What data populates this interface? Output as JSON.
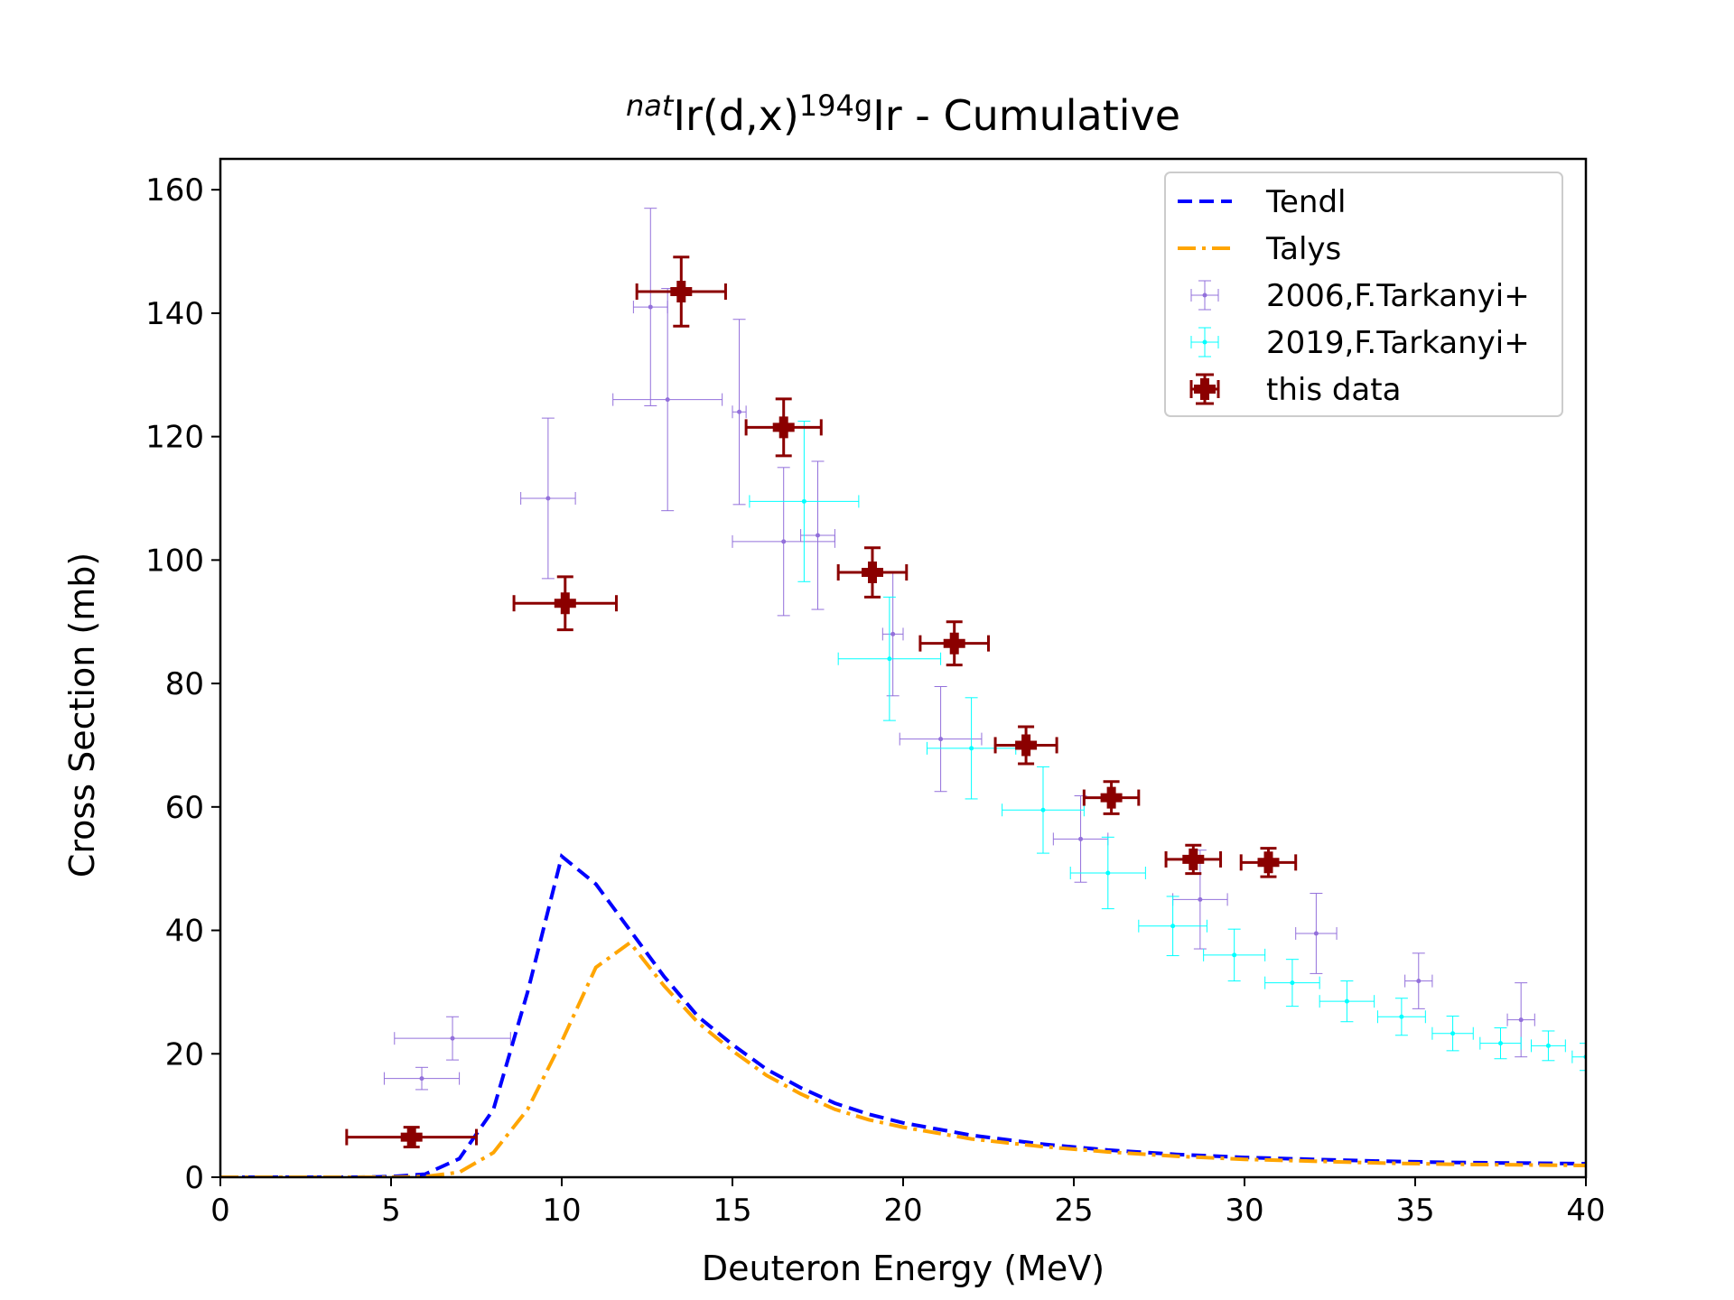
{
  "chart_data": {
    "type": "scatter",
    "title": {
      "prefix_sup": "nat",
      "main1": "Ir(d,x)",
      "mass_sup": "194g",
      "main2": "Ir - Cumulative"
    },
    "xlabel": "Deuteron Energy (MeV)",
    "ylabel": "Cross Section (mb)",
    "xlim": [
      0,
      40
    ],
    "ylim": [
      0,
      165
    ],
    "xticks": [
      0,
      5,
      10,
      15,
      20,
      25,
      30,
      35,
      40
    ],
    "yticks": [
      0,
      20,
      40,
      60,
      80,
      100,
      120,
      140,
      160
    ],
    "grid": false,
    "legend_position": "top-right",
    "series": [
      {
        "name": "Tendl",
        "kind": "line",
        "style": "dashed",
        "color": "#0000ff",
        "x": [
          0,
          1,
          2,
          3,
          4,
          5,
          6,
          7,
          8,
          9,
          10,
          11,
          12,
          13,
          14,
          15,
          16,
          17,
          18,
          19,
          20,
          22,
          24,
          26,
          28,
          30,
          32,
          34,
          36,
          38,
          40
        ],
        "y": [
          0,
          0,
          0,
          0,
          0,
          0.1,
          0.5,
          3,
          11,
          30,
          52,
          47.5,
          40,
          32.5,
          26,
          21.5,
          17.5,
          14.5,
          12,
          10.2,
          8.8,
          6.8,
          5.4,
          4.4,
          3.7,
          3.2,
          2.9,
          2.6,
          2.4,
          2.3,
          2.2
        ]
      },
      {
        "name": "Talys",
        "kind": "line",
        "style": "dashdot",
        "color": "#ffa500",
        "x": [
          0,
          1,
          2,
          3,
          4,
          5,
          6,
          7,
          8,
          9,
          10,
          11,
          12,
          13,
          14,
          15,
          16,
          17,
          18,
          19,
          20,
          22,
          24,
          26,
          28,
          30,
          32,
          34,
          36,
          38,
          40
        ],
        "y": [
          0,
          0,
          0,
          0,
          0,
          0,
          0.1,
          0.8,
          4,
          11,
          22,
          34,
          38,
          31,
          25,
          20.5,
          16.5,
          13.5,
          11,
          9.3,
          8.1,
          6.2,
          5,
          4.1,
          3.4,
          2.9,
          2.6,
          2.3,
          2.1,
          2,
          1.9
        ]
      },
      {
        "name": "2006,F.Tarkanyi+",
        "kind": "errorbar",
        "color": "#9370db",
        "points": [
          {
            "x": 5.9,
            "y": 16,
            "xerr": 1.1,
            "yerr": 1.8
          },
          {
            "x": 6.8,
            "y": 22.5,
            "xerr": 1.7,
            "yerr": 3.5
          },
          {
            "x": 9.6,
            "y": 110,
            "xerr": 0.8,
            "yerr": 13
          },
          {
            "x": 12.6,
            "y": 141,
            "xerr": 0.5,
            "yerr": 16
          },
          {
            "x": 13.1,
            "y": 126,
            "xerr": 1.6,
            "yerr": 18
          },
          {
            "x": 15.2,
            "y": 124,
            "xerr": 0.2,
            "yerr": 15
          },
          {
            "x": 16.5,
            "y": 103,
            "xerr": 1.5,
            "yerr": 12
          },
          {
            "x": 17.5,
            "y": 104,
            "xerr": 0.5,
            "yerr": 12
          },
          {
            "x": 19.7,
            "y": 88,
            "xerr": 0.3,
            "yerr": 10
          },
          {
            "x": 21.1,
            "y": 71,
            "xerr": 1.2,
            "yerr": 8.5
          },
          {
            "x": 25.2,
            "y": 54.8,
            "xerr": 0.8,
            "yerr": 7
          },
          {
            "x": 28.7,
            "y": 45,
            "xerr": 0.8,
            "yerr": 8
          },
          {
            "x": 32.1,
            "y": 39.5,
            "xerr": 0.6,
            "yerr": 6.5
          },
          {
            "x": 35.1,
            "y": 31.8,
            "xerr": 0.4,
            "yerr": 4.5
          },
          {
            "x": 38.1,
            "y": 25.5,
            "xerr": 0.4,
            "yerr": 6
          }
        ]
      },
      {
        "name": "2019,F.Tarkanyi+",
        "kind": "errorbar",
        "color": "#00ffff",
        "points": [
          {
            "x": 17.1,
            "y": 109.5,
            "xerr": 1.6,
            "yerr": 13
          },
          {
            "x": 19.6,
            "y": 84,
            "xerr": 1.5,
            "yerr": 10
          },
          {
            "x": 22.0,
            "y": 69.5,
            "xerr": 1.3,
            "yerr": 8.2
          },
          {
            "x": 24.1,
            "y": 59.5,
            "xerr": 1.2,
            "yerr": 7
          },
          {
            "x": 26.0,
            "y": 49.3,
            "xerr": 1.1,
            "yerr": 5.8
          },
          {
            "x": 27.9,
            "y": 40.7,
            "xerr": 1.0,
            "yerr": 4.8
          },
          {
            "x": 29.7,
            "y": 36,
            "xerr": 0.9,
            "yerr": 4.2
          },
          {
            "x": 31.4,
            "y": 31.5,
            "xerr": 0.8,
            "yerr": 3.8
          },
          {
            "x": 33.0,
            "y": 28.5,
            "xerr": 0.8,
            "yerr": 3.3
          },
          {
            "x": 34.6,
            "y": 26,
            "xerr": 0.7,
            "yerr": 3
          },
          {
            "x": 36.1,
            "y": 23.3,
            "xerr": 0.6,
            "yerr": 2.8
          },
          {
            "x": 37.5,
            "y": 21.7,
            "xerr": 0.6,
            "yerr": 2.5
          },
          {
            "x": 38.9,
            "y": 21.3,
            "xerr": 0.5,
            "yerr": 2.4
          },
          {
            "x": 40.0,
            "y": 19.5,
            "xerr": 0.4,
            "yerr": 2.2
          }
        ]
      },
      {
        "name": "this data",
        "kind": "errorbar",
        "color": "#8b0000",
        "points": [
          {
            "x": 5.6,
            "y": 6.5,
            "xerr": 1.9,
            "yerr": 1.6
          },
          {
            "x": 10.1,
            "y": 93,
            "xerr": 1.5,
            "yerr": 4.3
          },
          {
            "x": 13.5,
            "y": 143.5,
            "xerr": 1.3,
            "yerr": 5.6
          },
          {
            "x": 16.5,
            "y": 121.5,
            "xerr": 1.1,
            "yerr": 4.6
          },
          {
            "x": 19.1,
            "y": 98,
            "xerr": 1.0,
            "yerr": 4
          },
          {
            "x": 21.5,
            "y": 86.5,
            "xerr": 1.0,
            "yerr": 3.5
          },
          {
            "x": 23.6,
            "y": 70,
            "xerr": 0.9,
            "yerr": 3
          },
          {
            "x": 26.1,
            "y": 61.5,
            "xerr": 0.8,
            "yerr": 2.6
          },
          {
            "x": 28.5,
            "y": 51.5,
            "xerr": 0.8,
            "yerr": 2.3
          },
          {
            "x": 30.7,
            "y": 51,
            "xerr": 0.8,
            "yerr": 2.3
          }
        ]
      }
    ]
  }
}
